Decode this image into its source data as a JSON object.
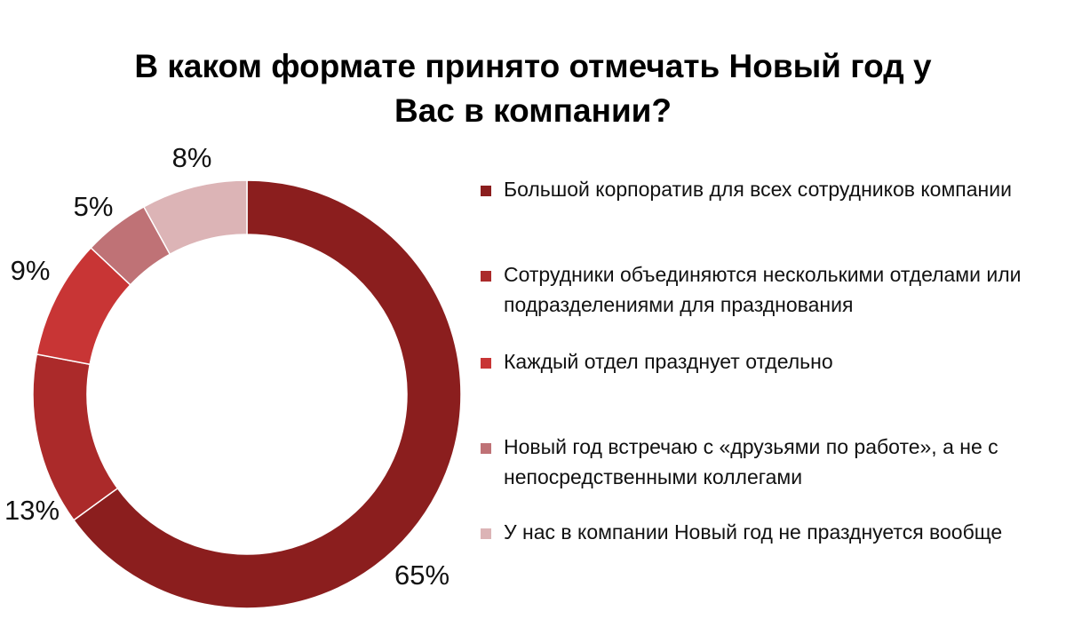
{
  "chart_data": {
    "type": "pie",
    "variant": "doughnut",
    "title": "В каком формате принято отмечать Новый год у Вас в компании?",
    "title_lines": [
      "В каком формате принято отмечать Новый год у",
      "Вас в компании?"
    ],
    "legend_position": "right",
    "slices": [
      {
        "label": "Большой корпоратив для всех сотрудников компании",
        "value": 65,
        "display": "65%",
        "color": "#8b1e1e"
      },
      {
        "label": "Сотрудники объединяются несколькими отделами или подразделениями для празднования",
        "value": 13,
        "display": "13%",
        "color": "#ab2a2a"
      },
      {
        "label": "Каждый отдел празднует отдельно",
        "value": 9,
        "display": "9%",
        "color": "#c83535"
      },
      {
        "label": "Новый год встречаю с «друзьями по работе», а не с непосредственными коллегами",
        "value": 5,
        "display": "5%",
        "color": "#bf7276"
      },
      {
        "label": "У нас в компании Новый год не празднуется вообще",
        "value": 8,
        "display": "8%",
        "color": "#dcb4b6"
      }
    ]
  }
}
